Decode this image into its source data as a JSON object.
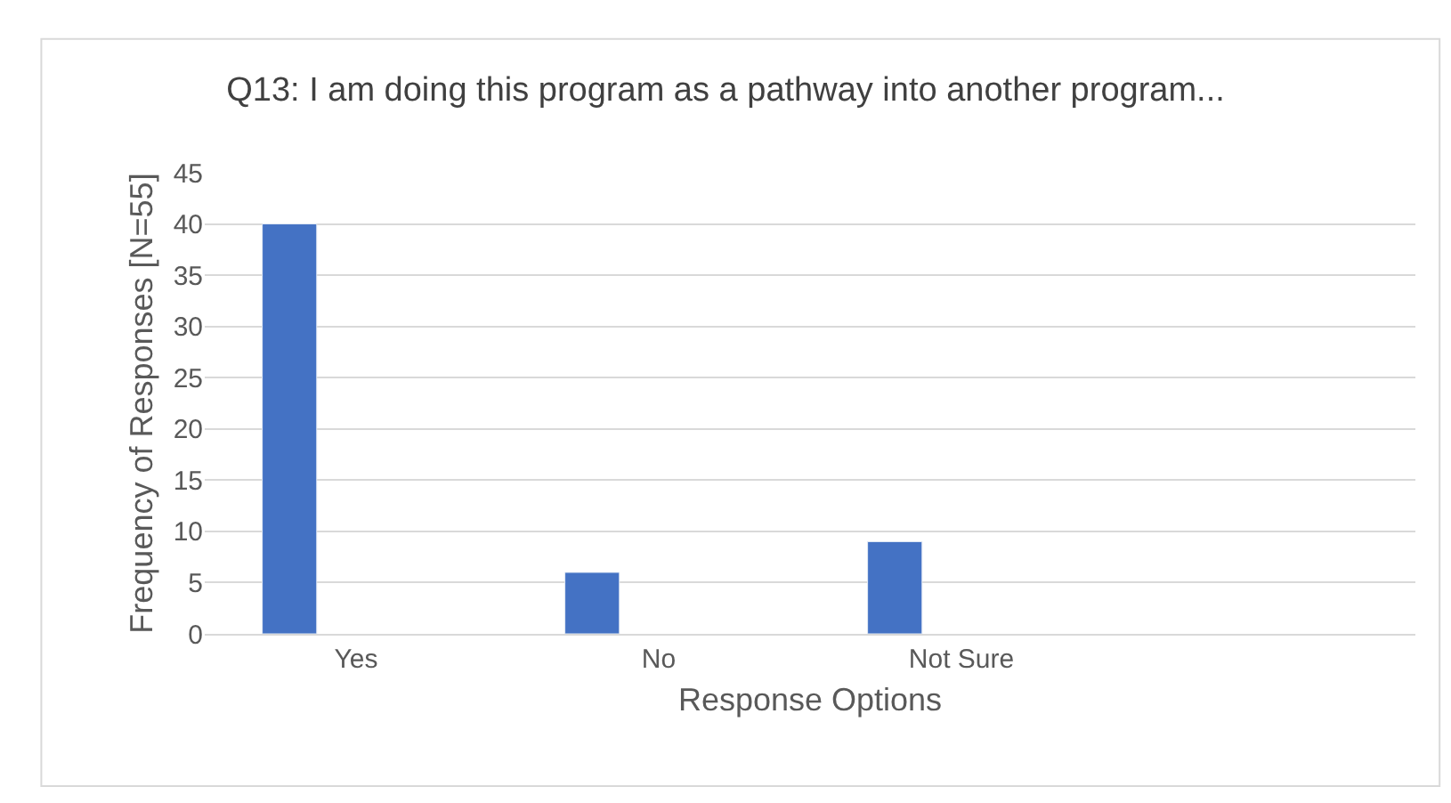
{
  "chart_data": {
    "type": "bar",
    "title": "Q13: I am doing this program as a pathway into another program...",
    "xlabel": "Response Options",
    "ylabel": "Frequency of Responses [N=55]",
    "categories": [
      "Yes",
      "No",
      "Not Sure",
      null
    ],
    "series": [
      {
        "color": "#4472c4",
        "values": [
          40,
          6,
          9,
          null
        ]
      }
    ],
    "ylim": [
      0,
      45
    ],
    "yticks": [
      0,
      5,
      10,
      15,
      20,
      25,
      30,
      35,
      40,
      45
    ],
    "grid": "y",
    "legend": false
  }
}
